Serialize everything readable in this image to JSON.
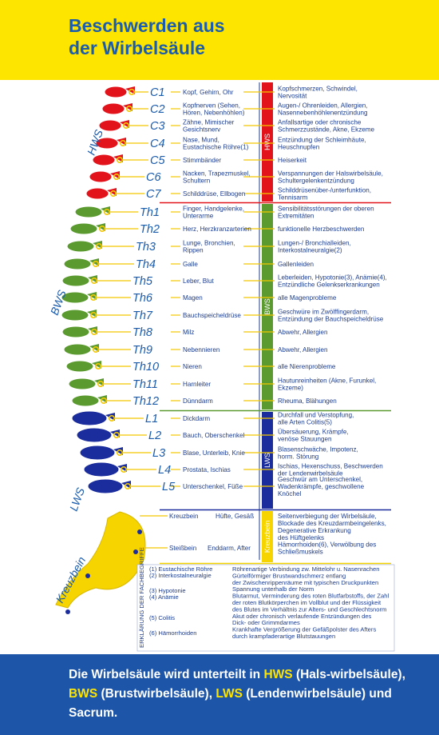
{
  "title_line1": "Beschwerden aus",
  "title_line2": "der Wirbelsäule",
  "colors": {
    "hws": "#e3131b",
    "bws": "#5a9a2e",
    "lws": "#1b2d9c",
    "kreuzbein": "#f6d400",
    "text": "#1d3d8f",
    "connector": "#f3c800"
  },
  "groups": {
    "hws": "HWS",
    "bws": "BWS",
    "lws": "LWS",
    "kreuzbein": "Kreuzbein"
  },
  "vertebrae": [
    {
      "label": "C1",
      "group": "hws",
      "organ": [
        "Kopf, Gehirn, Ohr"
      ],
      "symptom": [
        "Kopfschmerzen, Schwindel,",
        "Nervosität"
      ]
    },
    {
      "label": "C2",
      "group": "hws",
      "organ": [
        "Kopfnerven (Sehen,",
        "Hören, Nebenhöhlen)"
      ],
      "symptom": [
        "Augen-/ Ohrenleiden, Allergien,",
        "Nasennebenhöhlenentzündung"
      ]
    },
    {
      "label": "C3",
      "group": "hws",
      "organ": [
        "Zähne, Mimischer",
        "Gesichtsnerv"
      ],
      "symptom": [
        "Anfallsartige oder chronische",
        "Schmerzzustände, Akne, Ekzeme"
      ]
    },
    {
      "label": "C4",
      "group": "hws",
      "organ": [
        "Nase, Mund,",
        "Eustachische Röhre(1)"
      ],
      "symptom": [
        "Entzündung der Schleimhäute,",
        "Heuschnupfen"
      ]
    },
    {
      "label": "C5",
      "group": "hws",
      "organ": [
        "Stimmbänder"
      ],
      "symptom": [
        "Heiserkeit"
      ]
    },
    {
      "label": "C6",
      "group": "hws",
      "organ": [
        "Nacken, Trapezmuskel,",
        "Schultern"
      ],
      "symptom": [
        "Verspannungen der Halswirbelsäule,",
        "Schultergelenkentzündung"
      ]
    },
    {
      "label": "C7",
      "group": "hws",
      "organ": [
        "Schilddrüse, Ellbogen"
      ],
      "symptom": [
        "Schilddrüsenüber-/unterfunktion,",
        "Tennisarm"
      ]
    },
    {
      "label": "Th1",
      "group": "bws",
      "organ": [
        "Finger, Handgelenke,",
        "Unterarme"
      ],
      "symptom": [
        "Sensibilitätsstörungen der oberen",
        "Extremitäten"
      ]
    },
    {
      "label": "Th2",
      "group": "bws",
      "organ": [
        "Herz, Herzkranzarterien"
      ],
      "symptom": [
        "funktionelle Herzbeschwerden"
      ]
    },
    {
      "label": "Th3",
      "group": "bws",
      "organ": [
        "Lunge, Bronchien,",
        "Rippen"
      ],
      "symptom": [
        "Lungen-/ Bronchialleiden,",
        "Interkostalneuralgie(2)"
      ]
    },
    {
      "label": "Th4",
      "group": "bws",
      "organ": [
        "Galle"
      ],
      "symptom": [
        "Gallenleiden"
      ]
    },
    {
      "label": "Th5",
      "group": "bws",
      "organ": [
        "Leber, Blut"
      ],
      "symptom": [
        "Leberleiden, Hypotonie(3), Anämie(4),",
        "Entzündliche Gelenkserkrankungen"
      ]
    },
    {
      "label": "Th6",
      "group": "bws",
      "organ": [
        "Magen"
      ],
      "symptom": [
        "alle Magenprobleme"
      ]
    },
    {
      "label": "Th7",
      "group": "bws",
      "organ": [
        "Bauchspeicheldrüse"
      ],
      "symptom": [
        "Geschwüre im Zwölffingerdarm,",
        "Entzündung der Bauchspeicheldrüse"
      ]
    },
    {
      "label": "Th8",
      "group": "bws",
      "organ": [
        "Milz"
      ],
      "symptom": [
        "Abwehr, Allergien"
      ]
    },
    {
      "label": "Th9",
      "group": "bws",
      "organ": [
        "Nebennieren"
      ],
      "symptom": [
        "Abwehr, Allergien"
      ]
    },
    {
      "label": "Th10",
      "group": "bws",
      "organ": [
        "Nieren"
      ],
      "symptom": [
        "alle Nierenprobleme"
      ]
    },
    {
      "label": "Th11",
      "group": "bws",
      "organ": [
        "Harnleiter"
      ],
      "symptom": [
        "Hautunreinheiten (Akne, Furunkel,",
        "Ekzeme)"
      ]
    },
    {
      "label": "Th12",
      "group": "bws",
      "organ": [
        "Dünndarm"
      ],
      "symptom": [
        "Rheuma, Blähungen"
      ]
    },
    {
      "label": "L1",
      "group": "lws",
      "organ": [
        "Dickdarm"
      ],
      "symptom": [
        "Durchfall und Verstopfung,",
        "alle Arten Colitis(5)"
      ]
    },
    {
      "label": "L2",
      "group": "lws",
      "organ": [
        "Bauch, Oberschenkel"
      ],
      "symptom": [
        "Übersäuerung, Krämpfe,",
        "venöse Stauungen"
      ]
    },
    {
      "label": "L3",
      "group": "lws",
      "organ": [
        "Blase, Unterleib, Knie"
      ],
      "symptom": [
        "Blasenschwäche, Impotenz,",
        "horm. Störung"
      ]
    },
    {
      "label": "L4",
      "group": "lws",
      "organ": [
        "Prostata, Ischias"
      ],
      "symptom": [
        "Ischias, Hexenschuss, Beschwerden",
        "der Lendenwirbelsäule"
      ]
    },
    {
      "label": "L5",
      "group": "lws",
      "organ": [
        "Unterschenkel, Füße"
      ],
      "symptom": [
        "Geschwür am Unterschenkel,",
        "Wadenkrämpfe, geschwollene",
        "Knöchel"
      ]
    }
  ],
  "sacrum": [
    {
      "label": "Kreuzbein",
      "organ": "Hüfte, Gesäß",
      "symptom": [
        "Seitenverbiegung der Wirbelsäule,",
        "Blockade des Kreuzdarmbeingelenks,",
        "Degenerative Erkrankung",
        "des Hüftgelenks"
      ]
    },
    {
      "label": "Steißbein",
      "organ": "Enddarm, After",
      "symptom": [
        "Hämorrhoiden(6), Verwölbung des",
        "Schließmuskels"
      ]
    }
  ],
  "glossary_title": "ERKLÄRUNG DER FACHBEGRIFFE",
  "glossary_terms": [
    "(1) Eustachische Röhre",
    "(2) Interkostalneuralgie",
    "(3) Hypotonie",
    "(4) Anämie",
    "(5) Colitis",
    "(6) Hämorrhoiden"
  ],
  "glossary_defs": [
    "Röhrenartige Verbindung zw. Mittelohr u. Nasenrachen",
    "Gürtelförmiger Brustwandschmerz entlang",
    "der Zwischenrippenräume mit typischen Druckpunkten",
    "Spannung unterhalb der Norm",
    "Blutarmut, Verminderung des roten Blutfarbstoffs, der Zahl",
    "der roten Blutkörperchen im Vollblut und der Flüssigkeit",
    "des Blutes im Verhältnis zur Alters- und Geschlechtsnorm",
    "Akut oder chronisch verlaufende Entzündungen des",
    "Dick- oder Grimmdarmes",
    "Krankhafte Vergrößerung der Gefäßpolster des Afters",
    "durch krampfaderartige Blutstauungen"
  ],
  "footer": {
    "p1": "Die Wirbelsäule wird unterteilt in ",
    "hws": "HWS",
    "p2": " (Hals-wirbelsäule), ",
    "bws": "BWS",
    "p3": " (Brustwirbelsäule), ",
    "lws": "LWS",
    "p4": " (Lendenwirbelsäule) und Sacrum."
  }
}
